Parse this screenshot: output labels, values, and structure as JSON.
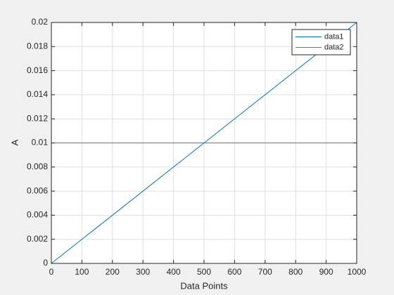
{
  "chart_data": {
    "type": "line",
    "x_label": "Data Points",
    "y_label": "A",
    "x": [
      0,
      1000
    ],
    "series": [
      {
        "name": "data1",
        "color": "#0072bd",
        "values": [
          0,
          0.02
        ]
      },
      {
        "name": "data2",
        "color": "#d95319",
        "values": [
          0.01,
          0.01
        ]
      }
    ],
    "xlim": [
      0,
      1000
    ],
    "xticks": [
      0,
      100,
      200,
      300,
      400,
      500,
      600,
      700,
      800,
      900,
      1000
    ],
    "ylim": [
      0,
      0.02
    ],
    "yticks": [
      0,
      0.002,
      0.004,
      0.006,
      0.008,
      0.01,
      0.012,
      0.014,
      0.016,
      0.018,
      0.02
    ],
    "grid": true,
    "legend": "northeast"
  }
}
